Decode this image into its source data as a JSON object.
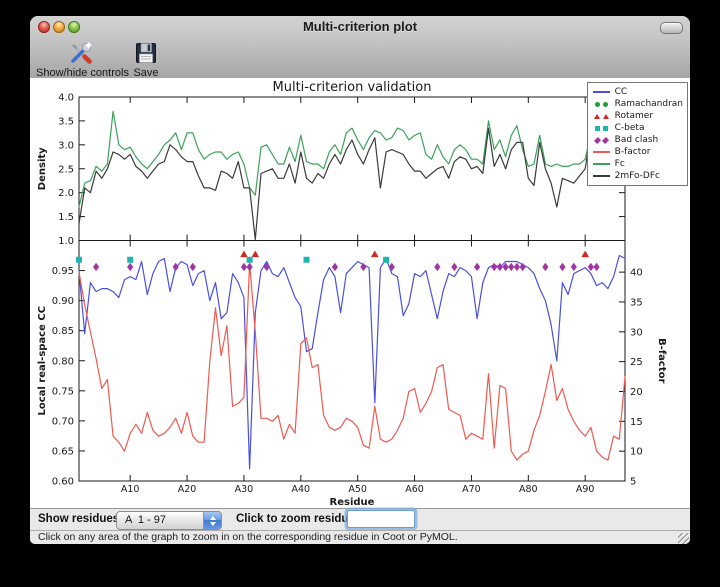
{
  "window": {
    "title": "Multi-criterion plot"
  },
  "toolbar": {
    "buttons": [
      {
        "label": "Show/hide controls",
        "icon": "tools-icon"
      },
      {
        "label": "Save",
        "icon": "save-icon"
      }
    ]
  },
  "controls": {
    "show_residues_label": "Show residues:",
    "chain_range": "A  1 - 97",
    "zoom_label": "Click to zoom residue:",
    "zoom_value": ""
  },
  "status": {
    "message": "Click on any area of the graph to zoom in on the corresponding residue in Coot or PyMOL."
  },
  "legend": {
    "position": "top-right",
    "entries": [
      {
        "label": "CC",
        "type": "line",
        "color": "#4a50dd"
      },
      {
        "label": "Ramachandran",
        "type": "circle",
        "color": "#1e9e38"
      },
      {
        "label": "Rotamer",
        "type": "triangle",
        "color": "#d3281d"
      },
      {
        "label": "C-beta",
        "type": "square",
        "color": "#1fb4ae"
      },
      {
        "label": "Bad clash",
        "type": "diamond",
        "color": "#a136a1"
      },
      {
        "label": "B-factor",
        "type": "line",
        "color": "#ee5a50"
      },
      {
        "label": "Fc",
        "type": "line",
        "color": "#3da15a"
      },
      {
        "label": "2mFo-DFc",
        "type": "line",
        "color": "#3a3a3a"
      }
    ]
  },
  "chart_data": [
    {
      "type": "line",
      "title": "Multi-criterion validation",
      "ylabel": "Density",
      "ylim": [
        1.0,
        4.0
      ],
      "yticks": [
        {
          "v": 1.0,
          "label": "1.0"
        },
        {
          "v": 1.5,
          "label": "1.5"
        },
        {
          "v": 2.0,
          "label": "2.0"
        },
        {
          "v": 2.5,
          "label": "2.5"
        },
        {
          "v": 3.0,
          "label": "3.0"
        },
        {
          "v": 3.5,
          "label": "3.5"
        },
        {
          "v": 4.0,
          "label": "4.0"
        }
      ],
      "x_range": [
        1,
        97
      ],
      "grid": false,
      "series": [
        {
          "name": "Fc",
          "color": "#3da15a",
          "values": [
            1.7,
            2.2,
            2.25,
            2.55,
            2.45,
            2.6,
            3.7,
            3.0,
            2.9,
            2.95,
            2.75,
            2.6,
            2.5,
            2.65,
            2.8,
            3.0,
            3.1,
            3.25,
            2.9,
            3.25,
            3.25,
            2.9,
            2.7,
            2.8,
            2.85,
            2.85,
            2.7,
            2.8,
            2.85,
            2.6,
            2.1,
            1.95,
            2.95,
            3.0,
            2.8,
            2.6,
            2.6,
            2.95,
            2.65,
            3.2,
            2.65,
            2.6,
            2.6,
            2.5,
            2.85,
            3.0,
            2.8,
            3.25,
            3.35,
            3.1,
            2.9,
            3.15,
            3.3,
            3.25,
            3.1,
            3.15,
            3.35,
            3.3,
            3.1,
            3.2,
            3.25,
            2.8,
            2.7,
            3.0,
            2.75,
            2.6,
            2.9,
            3.0,
            2.9,
            2.7,
            2.7,
            2.6,
            3.5,
            2.9,
            3.1,
            2.75,
            3.2,
            3.4,
            2.9,
            2.55,
            2.6,
            3.2,
            2.6,
            2.55,
            2.6,
            2.55,
            2.55,
            2.6,
            2.6,
            2.7,
            3.25,
            2.6,
            2.55,
            2.55,
            2.6,
            3.0,
            3.5
          ]
        },
        {
          "name": "2mFo-DFc",
          "color": "#3a3a3a",
          "values": [
            1.35,
            2.1,
            2.0,
            2.45,
            2.3,
            2.5,
            2.85,
            2.8,
            2.7,
            2.8,
            2.55,
            2.45,
            2.3,
            2.45,
            2.6,
            2.65,
            3.0,
            2.9,
            2.75,
            2.65,
            2.65,
            2.35,
            2.1,
            2.1,
            2.05,
            2.45,
            2.4,
            2.3,
            2.65,
            2.1,
            2.1,
            1.02,
            2.4,
            2.45,
            2.5,
            2.3,
            2.3,
            2.6,
            2.2,
            2.85,
            2.3,
            2.2,
            2.4,
            2.3,
            2.6,
            2.8,
            2.6,
            2.9,
            3.1,
            2.8,
            2.6,
            2.9,
            3.15,
            2.1,
            2.85,
            2.9,
            2.85,
            2.8,
            2.6,
            2.45,
            2.45,
            2.3,
            2.4,
            2.5,
            2.55,
            2.3,
            2.65,
            2.75,
            2.7,
            2.5,
            2.55,
            2.4,
            3.35,
            2.55,
            2.8,
            2.5,
            2.9,
            3.05,
            3.05,
            2.3,
            2.15,
            3.05,
            2.5,
            2.2,
            1.7,
            2.3,
            2.25,
            2.2,
            2.35,
            2.5,
            3.3,
            2.3,
            2.2,
            2.3,
            2.6,
            2.9,
            3.0
          ]
        }
      ]
    },
    {
      "type": "line",
      "xlabel": "Residue",
      "ylabel": "Local real-space CC",
      "ylim": [
        0.6,
        1.0
      ],
      "yticks": [
        {
          "v": 0.6,
          "label": "0.60"
        },
        {
          "v": 0.65,
          "label": "0.65"
        },
        {
          "v": 0.7,
          "label": "0.70"
        },
        {
          "v": 0.75,
          "label": "0.75"
        },
        {
          "v": 0.8,
          "label": "0.80"
        },
        {
          "v": 0.85,
          "label": "0.85"
        },
        {
          "v": 0.9,
          "label": "0.90"
        },
        {
          "v": 0.95,
          "label": "0.95"
        }
      ],
      "y2label": "B-factor",
      "y2lim": [
        5,
        45.3
      ],
      "y2ticks": [
        {
          "v": 5,
          "label": "5"
        },
        {
          "v": 10,
          "label": "10"
        },
        {
          "v": 15,
          "label": "15"
        },
        {
          "v": 20,
          "label": "20"
        },
        {
          "v": 25,
          "label": "25"
        },
        {
          "v": 30,
          "label": "30"
        },
        {
          "v": 35,
          "label": "35"
        },
        {
          "v": 40,
          "label": "40"
        }
      ],
      "xticks": [
        {
          "r": 10,
          "label": "A10"
        },
        {
          "r": 20,
          "label": "A20"
        },
        {
          "r": 30,
          "label": "A30"
        },
        {
          "r": 40,
          "label": "A40"
        },
        {
          "r": 50,
          "label": "A50"
        },
        {
          "r": 60,
          "label": "A60"
        },
        {
          "r": 70,
          "label": "A70"
        },
        {
          "r": 80,
          "label": "A80"
        },
        {
          "r": 90,
          "label": "A90"
        }
      ],
      "x_range": [
        1,
        97
      ],
      "grid": false,
      "series": [
        {
          "name": "CC",
          "axis": "y1",
          "color": "#4a50dd",
          "values": [
            0.95,
            0.845,
            0.93,
            0.915,
            0.92,
            0.92,
            0.915,
            0.905,
            0.935,
            0.94,
            0.935,
            0.965,
            0.91,
            0.945,
            0.965,
            0.97,
            0.915,
            0.955,
            0.965,
            0.96,
            0.925,
            0.945,
            0.95,
            0.9,
            0.93,
            0.87,
            0.88,
            0.945,
            0.93,
            0.905,
            0.62,
            0.88,
            0.95,
            0.965,
            0.945,
            0.94,
            0.955,
            0.93,
            0.905,
            0.89,
            0.815,
            0.82,
            0.88,
            0.935,
            0.955,
            0.94,
            0.88,
            0.945,
            0.955,
            0.965,
            0.96,
            0.955,
            0.73,
            0.955,
            0.97,
            0.945,
            0.94,
            0.875,
            0.895,
            0.945,
            0.94,
            0.95,
            0.91,
            0.87,
            0.915,
            0.945,
            0.94,
            0.955,
            0.95,
            0.94,
            0.87,
            0.93,
            0.955,
            0.96,
            0.955,
            0.965,
            0.965,
            0.965,
            0.96,
            0.955,
            0.945,
            0.92,
            0.9,
            0.86,
            0.8,
            0.93,
            0.91,
            0.945,
            0.95,
            0.955,
            0.945,
            0.925,
            0.93,
            0.92,
            0.94,
            0.975,
            0.97
          ]
        },
        {
          "name": "B-factor",
          "axis": "y2",
          "color": "#ee5a50",
          "values": [
            40,
            34.5,
            30,
            25.5,
            20.5,
            22,
            12.5,
            11.5,
            10,
            13,
            14.5,
            13,
            16.5,
            13.5,
            12.5,
            13,
            14,
            15.5,
            13,
            16.5,
            12.5,
            11.5,
            11.5,
            25,
            34,
            26,
            31,
            17.5,
            18,
            19,
            41.5,
            30,
            15.5,
            15.5,
            15,
            16,
            12,
            14.5,
            13,
            28,
            29,
            24,
            24.5,
            16,
            14,
            13.5,
            14,
            15.5,
            15,
            14,
            11,
            10.5,
            17.5,
            12,
            11.5,
            12,
            13.5,
            15.5,
            20,
            20.5,
            16.5,
            18,
            20,
            24,
            24.5,
            17,
            16.5,
            16,
            12,
            13,
            12.5,
            12,
            23,
            10.5,
            21,
            20.5,
            10,
            8.5,
            9.5,
            10,
            13.5,
            16,
            20,
            24.5,
            18.5,
            20.5,
            17,
            15,
            13.5,
            12.5,
            14,
            10,
            9,
            8.5,
            12.5,
            12,
            22.5
          ]
        }
      ],
      "markers": [
        {
          "name": "Rotamer",
          "shape": "triangle",
          "color": "#d3281d",
          "y": 0.977,
          "residues": [
            30,
            32,
            53,
            90
          ]
        },
        {
          "name": "C-beta",
          "shape": "square",
          "color": "#1fb4ae",
          "y": 0.968,
          "residues": [
            1,
            10,
            31,
            41,
            55
          ]
        },
        {
          "name": "Bad clash",
          "shape": "diamond",
          "color": "#a136a1",
          "y": 0.956,
          "residues": [
            4,
            10,
            18,
            21,
            30,
            31,
            34,
            46,
            51,
            56,
            64,
            67,
            71,
            74,
            75,
            76,
            77,
            78,
            79,
            83,
            86,
            88,
            91,
            92
          ]
        },
        {
          "name": "Ramachandran",
          "shape": "circle",
          "color": "#1e9e38",
          "y": 0.99,
          "residues": []
        }
      ]
    }
  ]
}
